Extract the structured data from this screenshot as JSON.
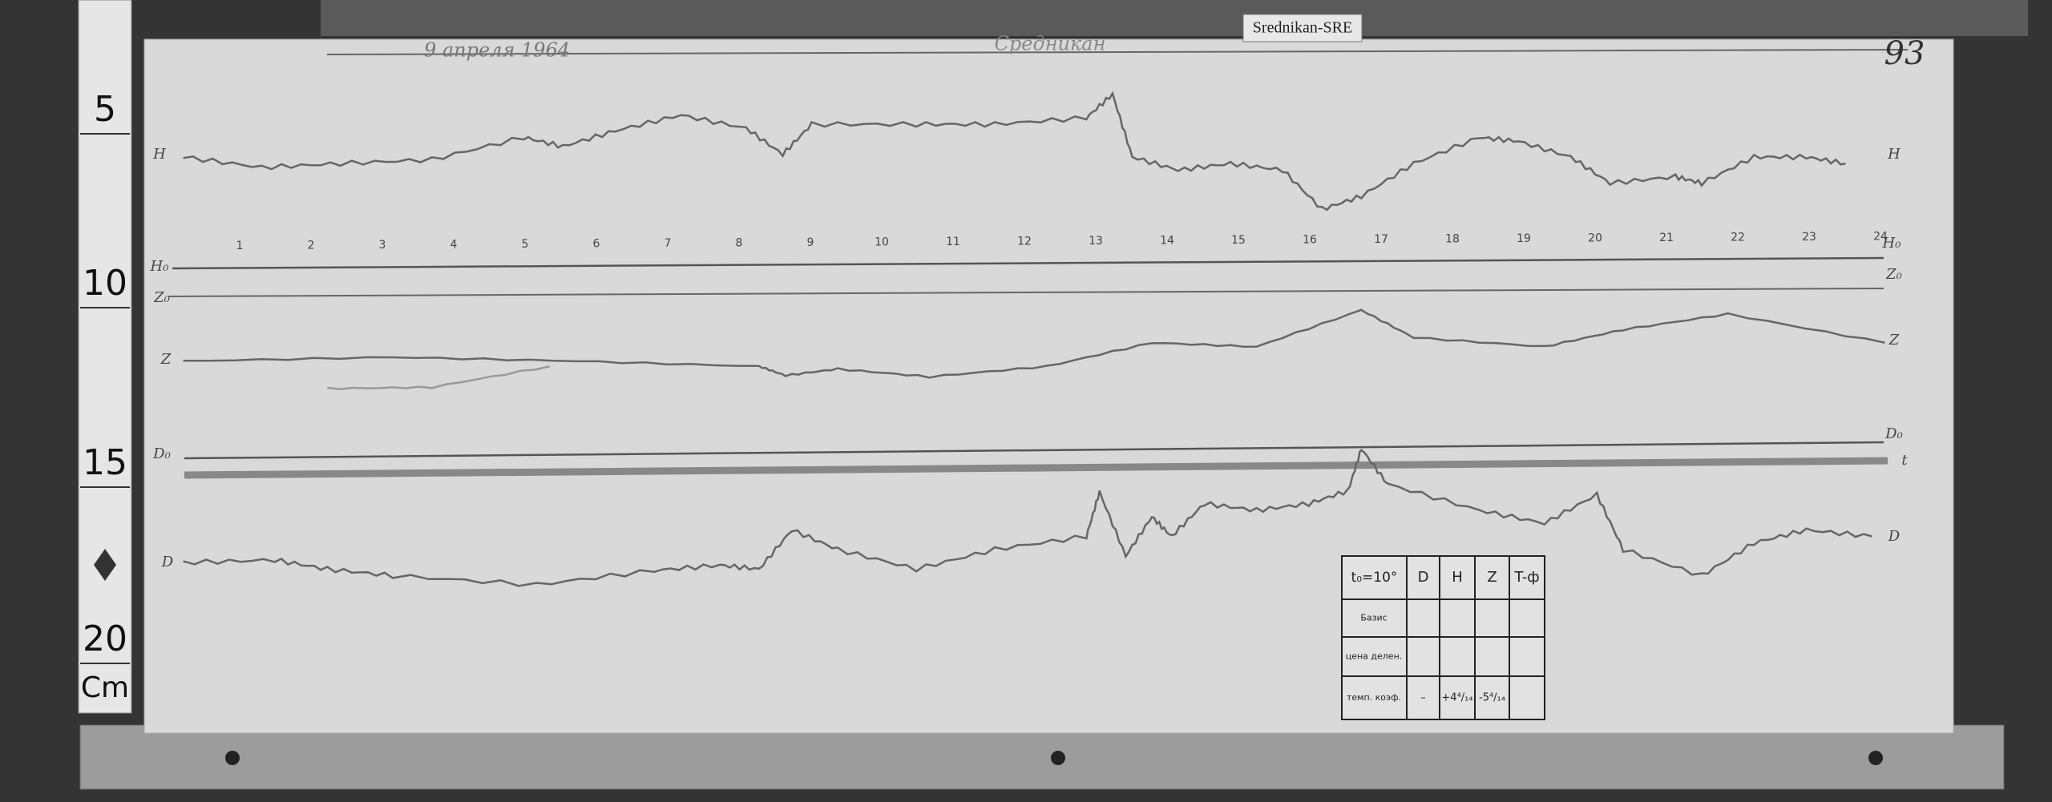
{
  "header": {
    "label": "Srednikan-SRE",
    "date": "9 апреля 1964",
    "station": "Средникан",
    "sheet": "93"
  },
  "ruler": {
    "marks": [
      "5",
      "10",
      "15",
      "20"
    ],
    "unit": "Cm"
  },
  "trace_labels": [
    "H",
    "H",
    "H₀",
    "H₀",
    "Z₀",
    "Z₀",
    "Z",
    "Z",
    "D₀",
    "D₀",
    "t",
    "D",
    "D"
  ],
  "hours": [
    "1",
    "2",
    "3",
    "4",
    "5",
    "6",
    "7",
    "8",
    "9",
    "10",
    "11",
    "12",
    "13",
    "14",
    "15",
    "16",
    "17",
    "18",
    "19",
    "20",
    "21",
    "22",
    "23",
    "24"
  ],
  "table": {
    "header": [
      "t₀=10°",
      "D",
      "H",
      "Z",
      "T-ф"
    ],
    "rows": [
      {
        "label": "Базис"
      },
      {
        "label": "цена делен."
      },
      {
        "label": "темп. коэф.",
        "cells": [
          "–",
          "+4⁴/₁₄",
          "-5⁴/₁₄"
        ]
      }
    ]
  }
}
